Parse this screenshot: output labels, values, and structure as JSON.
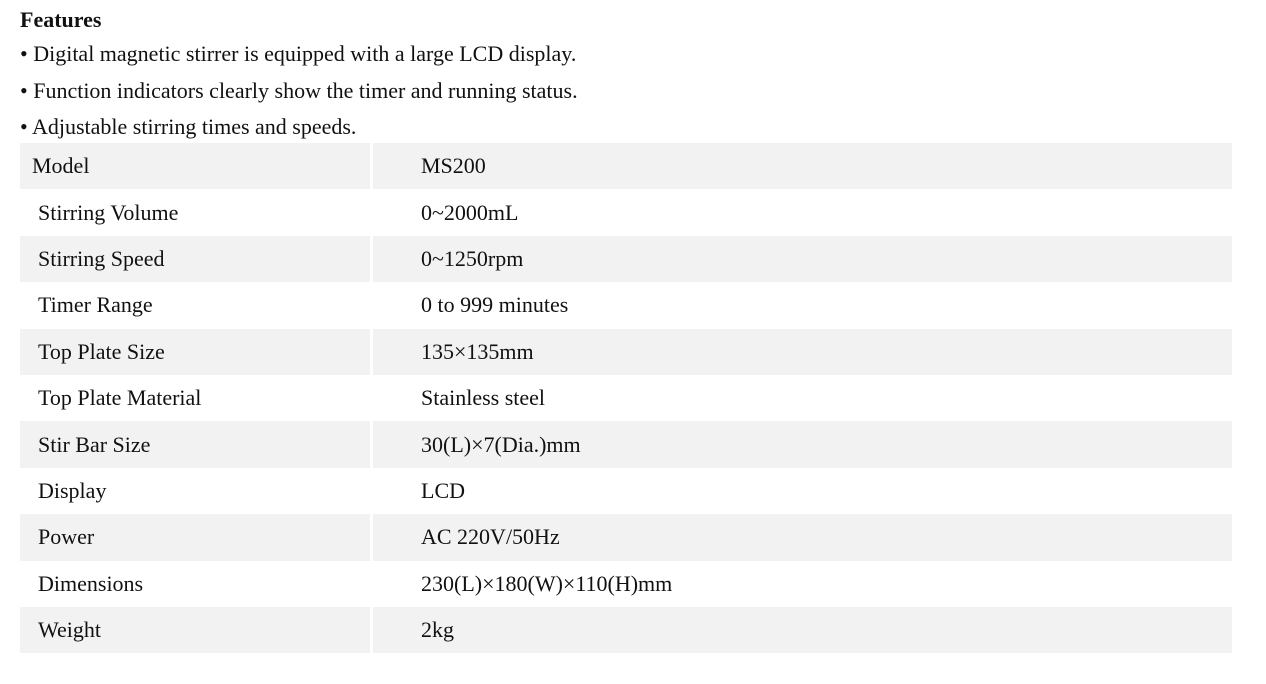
{
  "features": {
    "title": "Features",
    "bullets": [
      "• Digital magnetic stirrer is equipped with a large LCD display.",
      "• Function indicators clearly show the timer and running status.",
      "• Adjustable stirring times and speeds."
    ]
  },
  "specs": {
    "rows": [
      {
        "label": "Model",
        "value": "MS200"
      },
      {
        "label": "Stirring Volume",
        "value": "0~2000mL"
      },
      {
        "label": "Stirring Speed",
        "value": "0~1250rpm"
      },
      {
        "label": "Timer Range",
        "value": "0 to 999 minutes"
      },
      {
        "label": "Top Plate Size",
        "value": "135×135mm"
      },
      {
        "label": "Top Plate Material",
        "value": "Stainless steel"
      },
      {
        "label": "Stir Bar Size",
        "value": "30(L)×7(Dia.)mm"
      },
      {
        "label": "Display",
        "value": "LCD"
      },
      {
        "label": "Power",
        "value": "AC 220V/50Hz"
      },
      {
        "label": "Dimensions",
        "value": "230(L)×180(W)×110(H)mm"
      },
      {
        "label": "Weight",
        "value": "2kg"
      }
    ]
  }
}
